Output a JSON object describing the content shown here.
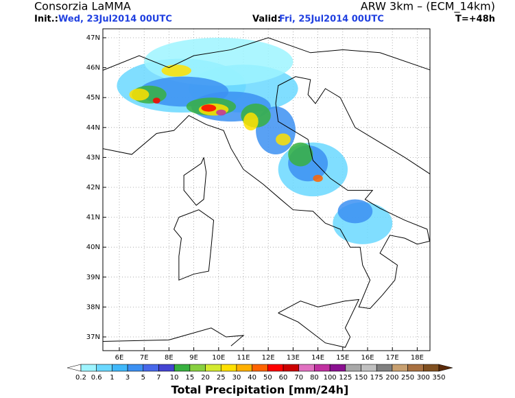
{
  "header": {
    "org": "Consorzia LaMMA",
    "model": "ARW 3km – (ECM_14km)",
    "init_label": "Init.:",
    "init_value": "Wed, 23Jul2014 00UTC",
    "valid_label": "Valid:",
    "valid_value": "Fri, 25Jul2014 00UTC",
    "lead": "T=+48h"
  },
  "map": {
    "lat_ticks": [
      "47N",
      "46N",
      "45N",
      "44N",
      "43N",
      "42N",
      "41N",
      "40N",
      "39N",
      "38N",
      "37N"
    ],
    "lon_ticks": [
      "6E",
      "7E",
      "8E",
      "9E",
      "10E",
      "11E",
      "12E",
      "13E",
      "14E",
      "15E",
      "16E",
      "17E",
      "18E"
    ]
  },
  "colorbar": {
    "title": "Total Precipitation [mm/24h]",
    "labels": [
      "0.2",
      "0.6",
      "1",
      "3",
      "5",
      "7",
      "10",
      "15",
      "20",
      "25",
      "30",
      "40",
      "50",
      "60",
      "70",
      "80",
      "100",
      "125",
      "150",
      "175",
      "200",
      "250",
      "300",
      "350"
    ],
    "colors": [
      "#ffffff",
      "#9ef4ff",
      "#6ad8ff",
      "#40b8fa",
      "#3c90f2",
      "#4868ea",
      "#4444d2",
      "#38b040",
      "#88d040",
      "#d4ea30",
      "#ffe000",
      "#ffb000",
      "#ff6400",
      "#ff0000",
      "#cc0000",
      "#e070c0",
      "#c030a0",
      "#8a1090",
      "#a8a8a8",
      "#c0c0c0",
      "#808080",
      "#c8a070",
      "#a87040",
      "#805020",
      "#5a2a0a"
    ]
  }
}
